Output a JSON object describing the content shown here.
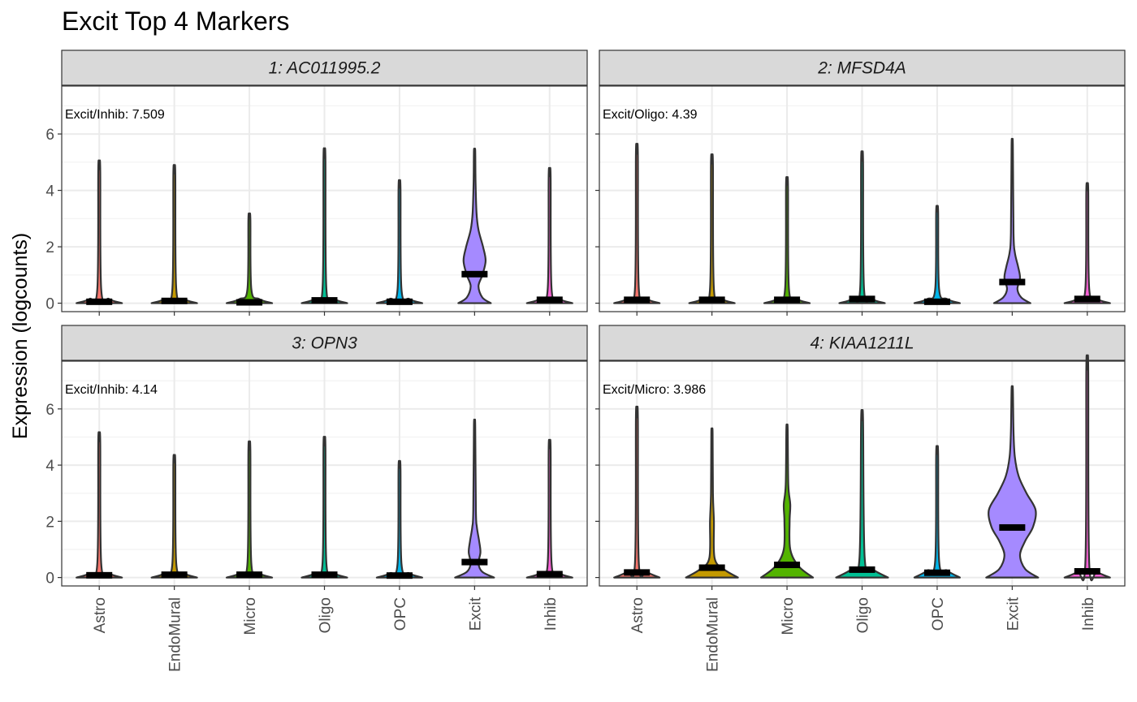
{
  "chart_data": {
    "type": "violin",
    "title": "Excit Top 4 Markers",
    "ylabel": "Expression (logcounts)",
    "xlabel": "",
    "ylim": [
      -0.3,
      7.7
    ],
    "yticks": [
      0,
      2,
      4,
      6
    ],
    "grid": true,
    "facet_layout": "2x2",
    "categories": [
      "Astro",
      "EndoMural",
      "Micro",
      "Oligo",
      "OPC",
      "Excit",
      "Inhib"
    ],
    "colors": {
      "Astro": "#F8766D",
      "EndoMural": "#C49A00",
      "Micro": "#53B400",
      "Oligo": "#00C094",
      "OPC": "#00B6EB",
      "Excit": "#A58AFF",
      "Inhib": "#FB61D7"
    },
    "panels": [
      {
        "strip": "1: AC011995.2",
        "annotation": "Excit/Inhib: 7.509",
        "medians": [
          0.05,
          0.08,
          0.03,
          0.1,
          0.05,
          1.03,
          0.12
        ],
        "maxima": [
          4.75,
          4.6,
          3.0,
          5.15,
          4.1,
          5.4,
          4.5
        ],
        "shapes": [
          [
            [
              0,
              0.35
            ],
            [
              0.15,
              0.15
            ],
            [
              0.5,
              0.03
            ],
            [
              4.75,
              0.015
            ]
          ],
          [
            [
              0,
              0.35
            ],
            [
              0.15,
              0.15
            ],
            [
              0.5,
              0.03
            ],
            [
              4.6,
              0.015
            ]
          ],
          [
            [
              0,
              0.35
            ],
            [
              0.15,
              0.15
            ],
            [
              0.5,
              0.03
            ],
            [
              3.0,
              0.015
            ]
          ],
          [
            [
              0,
              0.35
            ],
            [
              0.15,
              0.15
            ],
            [
              0.5,
              0.03
            ],
            [
              5.15,
              0.015
            ]
          ],
          [
            [
              0,
              0.35
            ],
            [
              0.15,
              0.15
            ],
            [
              0.5,
              0.03
            ],
            [
              4.1,
              0.015
            ]
          ],
          [
            [
              0,
              0.25
            ],
            [
              0.2,
              0.12
            ],
            [
              0.6,
              0.06
            ],
            [
              1.0,
              0.12
            ],
            [
              1.5,
              0.17
            ],
            [
              2.0,
              0.13
            ],
            [
              2.6,
              0.06
            ],
            [
              3.2,
              0.03
            ],
            [
              4.3,
              0.015
            ],
            [
              5.4,
              0.01
            ]
          ],
          [
            [
              0,
              0.35
            ],
            [
              0.15,
              0.15
            ],
            [
              0.5,
              0.03
            ],
            [
              4.5,
              0.015
            ]
          ]
        ]
      },
      {
        "strip": "2: MFSD4A",
        "annotation": "Excit/Oligo: 4.39",
        "medians": [
          0.12,
          0.12,
          0.12,
          0.15,
          0.05,
          0.75,
          0.15
        ],
        "maxima": [
          5.3,
          4.95,
          4.2,
          5.05,
          3.25,
          5.6,
          4.0
        ],
        "shapes": [
          [
            [
              0,
              0.35
            ],
            [
              0.15,
              0.15
            ],
            [
              0.5,
              0.03
            ],
            [
              5.3,
              0.015
            ]
          ],
          [
            [
              0,
              0.35
            ],
            [
              0.15,
              0.15
            ],
            [
              0.5,
              0.03
            ],
            [
              4.95,
              0.015
            ]
          ],
          [
            [
              0,
              0.35
            ],
            [
              0.15,
              0.15
            ],
            [
              0.5,
              0.03
            ],
            [
              4.2,
              0.015
            ]
          ],
          [
            [
              0,
              0.35
            ],
            [
              0.15,
              0.15
            ],
            [
              0.5,
              0.03
            ],
            [
              5.05,
              0.015
            ]
          ],
          [
            [
              0,
              0.35
            ],
            [
              0.15,
              0.15
            ],
            [
              0.5,
              0.03
            ],
            [
              3.25,
              0.015
            ]
          ],
          [
            [
              0,
              0.28
            ],
            [
              0.2,
              0.14
            ],
            [
              0.5,
              0.08
            ],
            [
              0.9,
              0.12
            ],
            [
              1.3,
              0.09
            ],
            [
              1.8,
              0.04
            ],
            [
              2.5,
              0.02
            ],
            [
              5.6,
              0.01
            ]
          ],
          [
            [
              0,
              0.35
            ],
            [
              0.15,
              0.15
            ],
            [
              0.5,
              0.03
            ],
            [
              4.0,
              0.015
            ]
          ]
        ]
      },
      {
        "strip": "3: OPN3",
        "annotation": "Excit/Inhib: 4.14",
        "medians": [
          0.08,
          0.1,
          0.1,
          0.1,
          0.07,
          0.55,
          0.12
        ],
        "maxima": [
          4.85,
          4.1,
          4.55,
          4.7,
          3.9,
          5.4,
          4.6
        ],
        "shapes": [
          [
            [
              0,
              0.35
            ],
            [
              0.15,
              0.15
            ],
            [
              0.5,
              0.03
            ],
            [
              4.85,
              0.015
            ]
          ],
          [
            [
              0,
              0.35
            ],
            [
              0.15,
              0.15
            ],
            [
              0.5,
              0.03
            ],
            [
              4.1,
              0.015
            ]
          ],
          [
            [
              0,
              0.35
            ],
            [
              0.15,
              0.15
            ],
            [
              0.5,
              0.03
            ],
            [
              4.55,
              0.015
            ]
          ],
          [
            [
              0,
              0.35
            ],
            [
              0.15,
              0.15
            ],
            [
              0.5,
              0.03
            ],
            [
              4.7,
              0.015
            ]
          ],
          [
            [
              0,
              0.35
            ],
            [
              0.15,
              0.15
            ],
            [
              0.5,
              0.03
            ],
            [
              3.9,
              0.015
            ]
          ],
          [
            [
              0,
              0.3
            ],
            [
              0.2,
              0.12
            ],
            [
              0.5,
              0.06
            ],
            [
              0.9,
              0.09
            ],
            [
              1.3,
              0.07
            ],
            [
              1.8,
              0.035
            ],
            [
              2.4,
              0.02
            ],
            [
              5.4,
              0.01
            ]
          ],
          [
            [
              0,
              0.35
            ],
            [
              0.15,
              0.15
            ],
            [
              0.5,
              0.03
            ],
            [
              4.6,
              0.015
            ]
          ]
        ]
      },
      {
        "strip": "4: KIAA1211L",
        "annotation": "Excit/Micro: 3.986",
        "medians": [
          0.18,
          0.35,
          0.45,
          0.28,
          0.17,
          1.78,
          0.22
        ],
        "maxima": [
          5.7,
          5.15,
          5.3,
          5.6,
          4.4,
          6.7,
          7.4
        ],
        "shapes": [
          [
            [
              0,
              0.35
            ],
            [
              0.2,
              0.15
            ],
            [
              0.5,
              0.03
            ],
            [
              5.7,
              0.015
            ]
          ],
          [
            [
              0,
              0.4
            ],
            [
              0.3,
              0.18
            ],
            [
              0.7,
              0.04
            ],
            [
              2.0,
              0.03
            ],
            [
              3.0,
              0.015
            ],
            [
              5.15,
              0.01
            ]
          ],
          [
            [
              0,
              0.4
            ],
            [
              0.4,
              0.18
            ],
            [
              1.0,
              0.05
            ],
            [
              2.0,
              0.04
            ],
            [
              2.6,
              0.05
            ],
            [
              3.3,
              0.02
            ],
            [
              5.3,
              0.01
            ]
          ],
          [
            [
              0,
              0.4
            ],
            [
              0.3,
              0.16
            ],
            [
              0.7,
              0.04
            ],
            [
              5.6,
              0.015
            ]
          ],
          [
            [
              0,
              0.35
            ],
            [
              0.25,
              0.15
            ],
            [
              0.6,
              0.03
            ],
            [
              4.4,
              0.015
            ]
          ],
          [
            [
              0,
              0.4
            ],
            [
              0.3,
              0.2
            ],
            [
              0.8,
              0.12
            ],
            [
              1.3,
              0.2
            ],
            [
              1.8,
              0.32
            ],
            [
              2.4,
              0.36
            ],
            [
              3.0,
              0.22
            ],
            [
              3.6,
              0.1
            ],
            [
              4.3,
              0.04
            ],
            [
              5.2,
              0.02
            ],
            [
              6.7,
              0.01
            ]
          ],
          [
            [
              0,
              0.35
            ],
            [
              0.2,
              0.15
            ],
            [
              0.5,
              0.03
            ],
            [
              7.4,
              0.015
            ]
          ]
        ]
      }
    ]
  }
}
